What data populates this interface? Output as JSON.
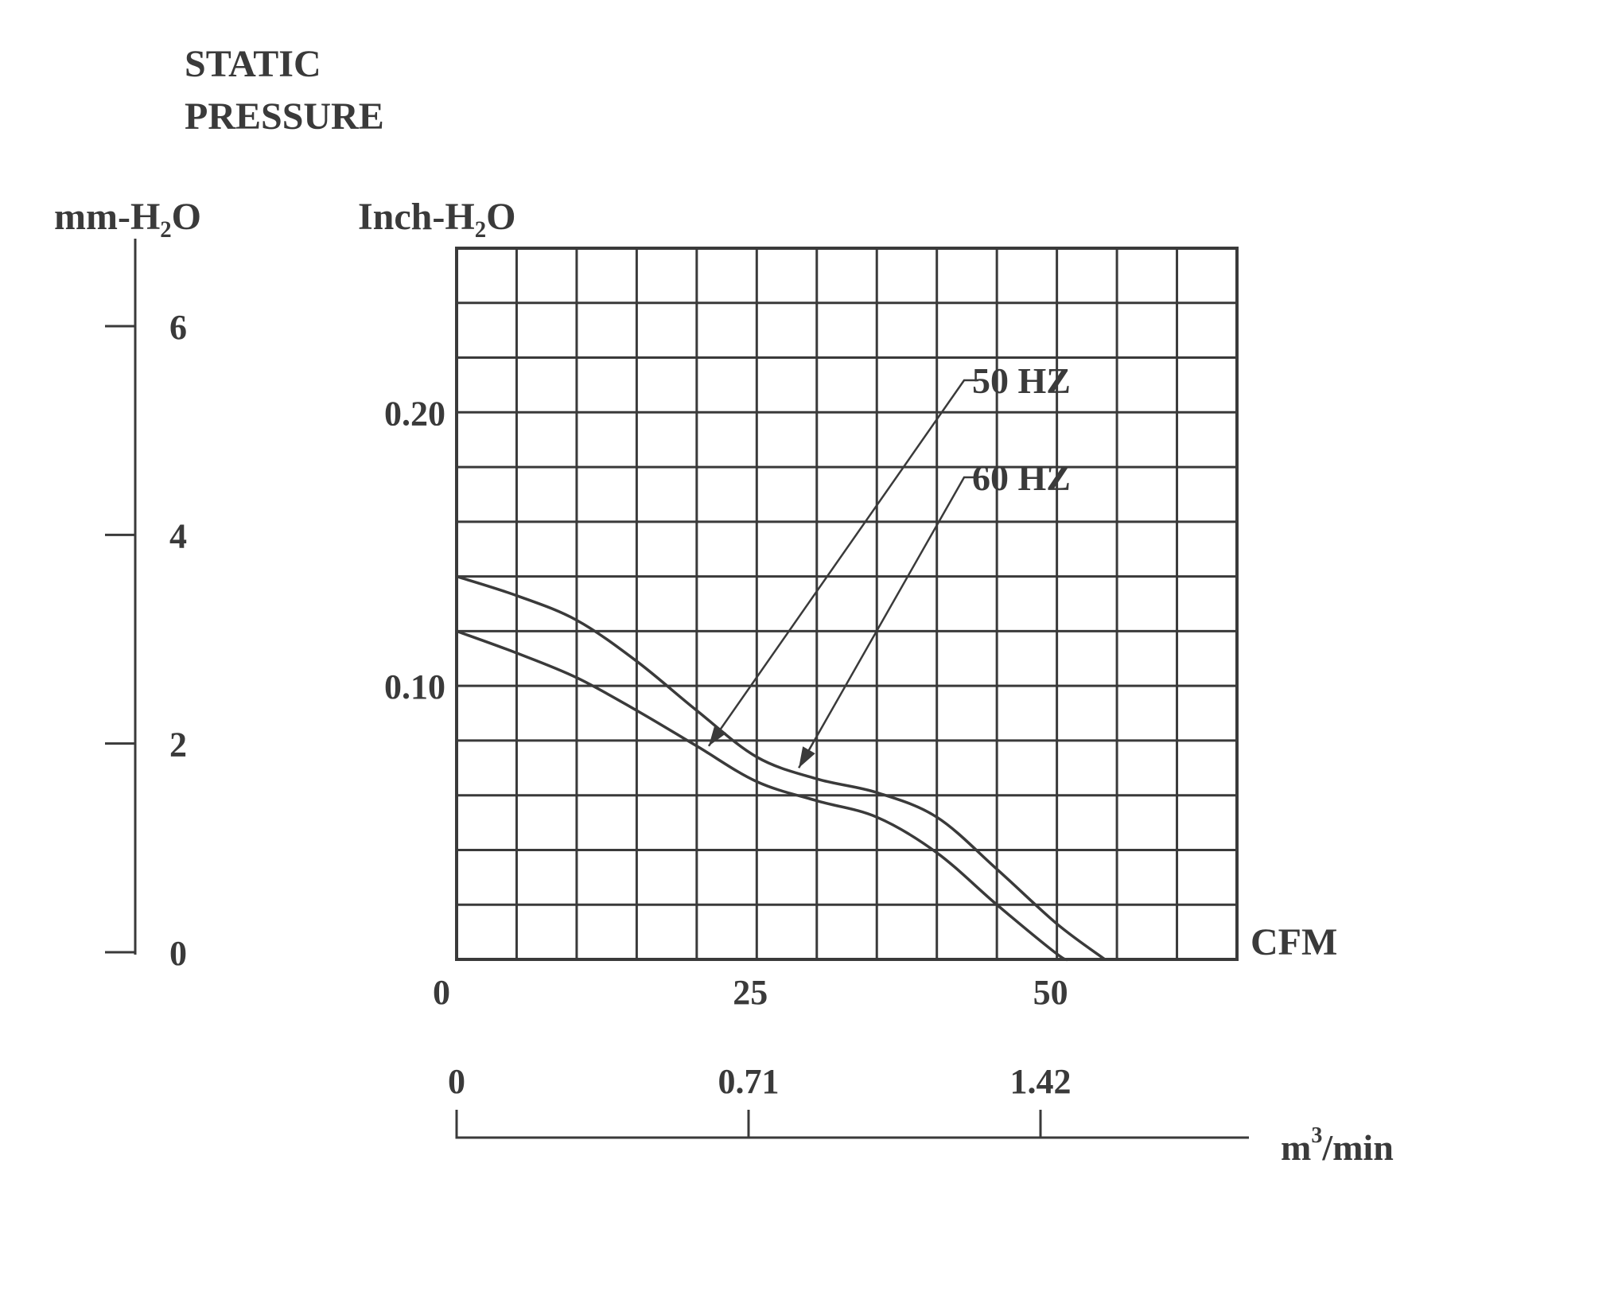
{
  "chart_data": {
    "type": "line",
    "title_line1": "STATIC",
    "title_line2": "PRESSURE",
    "y_left_label": "mm-H₂O",
    "y_right_label": "Inch-H₂O",
    "x_label": "CFM",
    "x2_label_base": "m",
    "x2_label_sup": "3",
    "x2_label_tail": "/min",
    "y_inch_ticks": [
      "0.20",
      "0.10"
    ],
    "y_inch_tick_values": [
      0.2,
      0.1
    ],
    "y_mm_ticks": [
      "6",
      "4",
      "2",
      "0"
    ],
    "y_mm_tick_values": [
      6,
      4,
      2,
      0
    ],
    "x_cfm_ticks": [
      "0",
      "25",
      "50"
    ],
    "x_cfm_tick_values": [
      0,
      25,
      50
    ],
    "x_m3_ticks": [
      "0",
      "0.71",
      "1.42"
    ],
    "x_m3_tick_values": [
      0,
      0.71,
      1.42
    ],
    "xlim": [
      0,
      65
    ],
    "ylim": [
      0,
      0.26
    ],
    "grid": true,
    "series": [
      {
        "name": "50 HZ",
        "x": [
          0,
          5,
          10,
          15,
          20,
          25,
          30,
          35,
          40,
          45,
          50,
          51
        ],
        "y": [
          0.12,
          0.112,
          0.103,
          0.091,
          0.078,
          0.065,
          0.058,
          0.052,
          0.039,
          0.02,
          0.002,
          0
        ]
      },
      {
        "name": "60 HZ",
        "x": [
          0,
          5,
          10,
          15,
          20,
          25,
          30,
          35,
          40,
          45,
          50,
          54
        ],
        "y": [
          0.14,
          0.133,
          0.124,
          0.109,
          0.091,
          0.074,
          0.066,
          0.061,
          0.052,
          0.033,
          0.013,
          0
        ]
      }
    ]
  }
}
